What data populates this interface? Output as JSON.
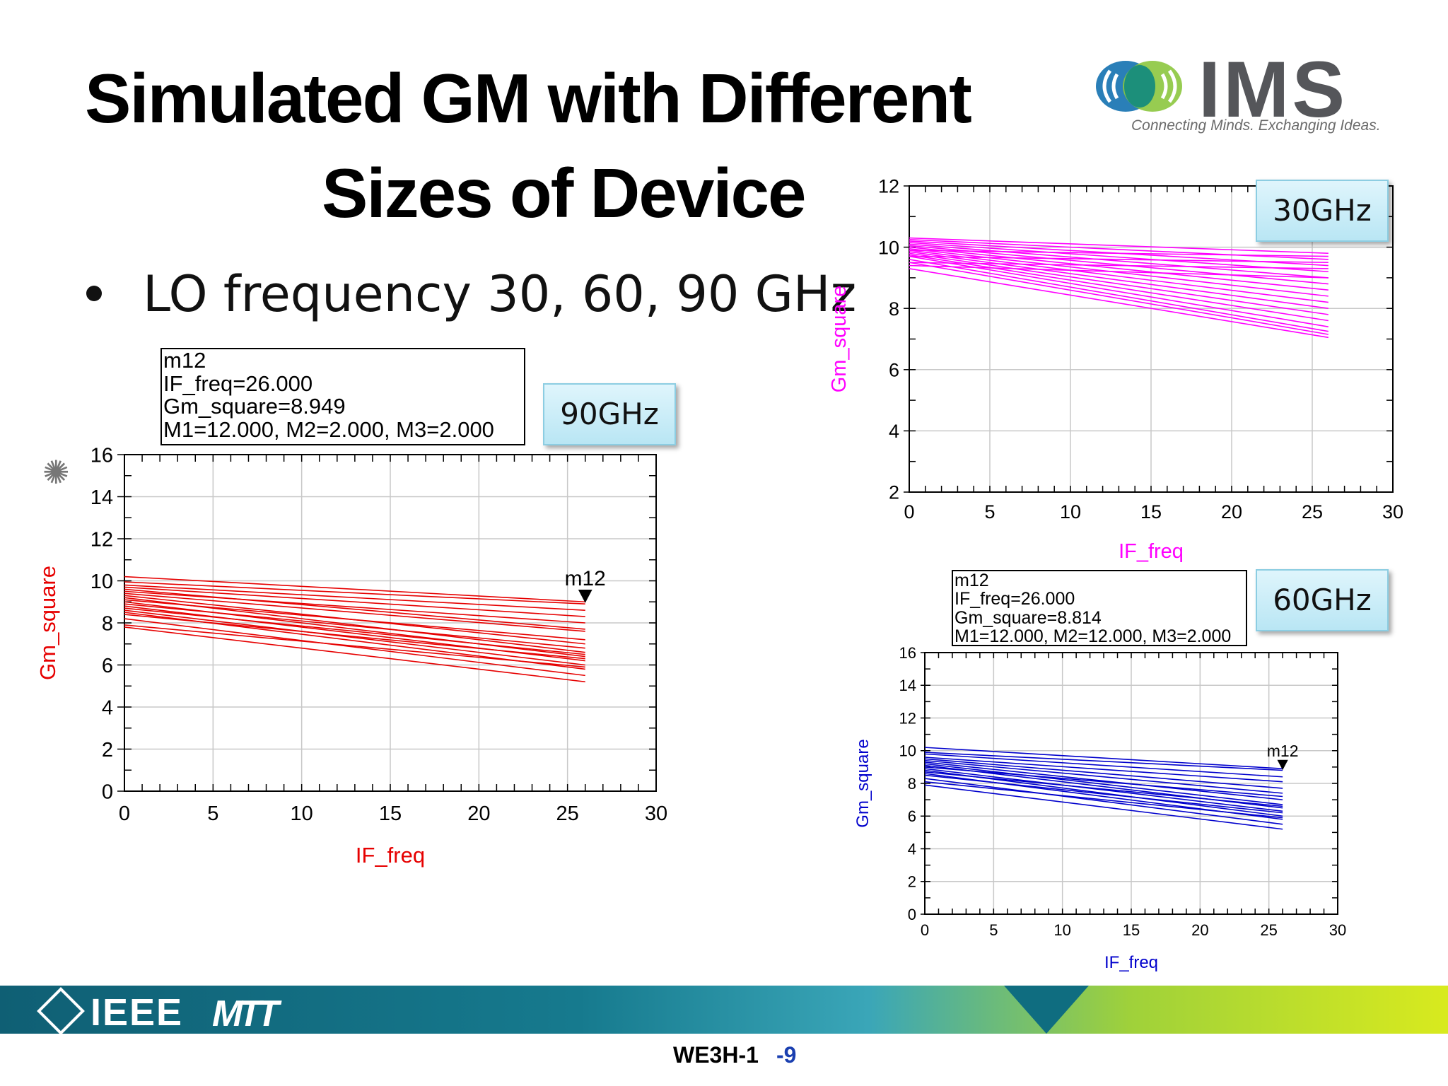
{
  "slide": {
    "title_line1": "Simulated GM with Different",
    "title_line2": "Sizes of Device",
    "bullet": "LO frequency 30, 60, 90 GHz",
    "logo_text": "IMS",
    "logo_tagline": "Connecting Minds. Exchanging Ideas.",
    "footer_left": "IEEE",
    "footer_mtt": "MTT",
    "slide_id": "WE3H-1",
    "page_number": "-9",
    "colors": {
      "chart_90": "#e60000",
      "chart_30": "#ff00ff",
      "chart_60": "#0000cc",
      "footer_start": "#0f5f74",
      "footer_end": "#d8ea1e"
    },
    "icons": [
      "ieee-diamond-icon",
      "mtt-logo-icon",
      "ims-speech-bubbles-icon",
      "agilent-spark-icon"
    ]
  },
  "chart_data": [
    {
      "id": "chart90",
      "type": "line",
      "badge": "90GHz",
      "xlabel": "IF_freq",
      "ylabel": "Gm_square",
      "xlim": [
        0,
        30
      ],
      "ylim": [
        0,
        16
      ],
      "xticks": [
        "0",
        "5",
        "10",
        "15",
        "20",
        "25",
        "30"
      ],
      "yticks": [
        "0",
        "2",
        "4",
        "6",
        "8",
        "10",
        "12",
        "14",
        "16"
      ],
      "grid": true,
      "color": "#e60000",
      "x": [
        0,
        26
      ],
      "series": [
        {
          "values": [
            10.2,
            9.0
          ]
        },
        {
          "values": [
            9.95,
            8.9
          ]
        },
        {
          "values": [
            9.8,
            8.6
          ]
        },
        {
          "values": [
            9.7,
            8.3
          ]
        },
        {
          "values": [
            9.6,
            7.7
          ]
        },
        {
          "values": [
            9.5,
            8.0
          ]
        },
        {
          "values": [
            9.4,
            7.6
          ]
        },
        {
          "values": [
            9.3,
            7.0
          ]
        },
        {
          "values": [
            9.2,
            6.6
          ]
        },
        {
          "values": [
            9.1,
            7.2
          ]
        },
        {
          "values": [
            9.0,
            6.4
          ]
        },
        {
          "values": [
            8.9,
            6.8
          ]
        },
        {
          "values": [
            8.8,
            6.2
          ]
        },
        {
          "values": [
            8.7,
            6.5
          ]
        },
        {
          "values": [
            8.6,
            6.0
          ]
        },
        {
          "values": [
            8.5,
            5.8
          ]
        },
        {
          "values": [
            8.4,
            6.3
          ]
        },
        {
          "values": [
            8.2,
            5.5
          ]
        },
        {
          "values": [
            7.9,
            5.9
          ]
        },
        {
          "values": [
            7.8,
            5.2
          ]
        }
      ],
      "marker": {
        "name": "m12",
        "x": 26,
        "y": 8.949,
        "lines": [
          "m12",
          "IF_freq=26.000",
          "Gm_square=8.949",
          "M1=12.000, M2=2.000, M3=2.000"
        ]
      }
    },
    {
      "id": "chart30",
      "type": "line",
      "badge": "30GHz",
      "xlabel": "IF_freq",
      "ylabel": "Gm_square",
      "xlim": [
        0,
        30
      ],
      "ylim": [
        2,
        12
      ],
      "xticks": [
        "0",
        "5",
        "10",
        "15",
        "20",
        "25",
        "30"
      ],
      "yticks": [
        "2",
        "4",
        "6",
        "8",
        "10",
        "12"
      ],
      "grid": true,
      "color": "#ff00ff",
      "x": [
        0,
        26
      ],
      "series": [
        {
          "values": [
            10.3,
            9.8
          ]
        },
        {
          "values": [
            10.25,
            9.6
          ]
        },
        {
          "values": [
            10.2,
            9.4
          ]
        },
        {
          "values": [
            10.15,
            9.2
          ]
        },
        {
          "values": [
            10.1,
            9.0
          ]
        },
        {
          "values": [
            10.05,
            8.8
          ]
        },
        {
          "values": [
            10.0,
            8.6
          ]
        },
        {
          "values": [
            9.95,
            8.4
          ]
        },
        {
          "values": [
            9.9,
            8.2
          ]
        },
        {
          "values": [
            9.85,
            8.0
          ]
        },
        {
          "values": [
            9.8,
            7.8
          ]
        },
        {
          "values": [
            9.75,
            7.6
          ]
        },
        {
          "values": [
            9.7,
            7.4
          ]
        },
        {
          "values": [
            9.6,
            7.25
          ]
        },
        {
          "values": [
            9.5,
            7.15
          ]
        },
        {
          "values": [
            9.3,
            7.05
          ]
        },
        {
          "values": [
            9.9,
            9.7
          ]
        },
        {
          "values": [
            9.7,
            9.5
          ]
        },
        {
          "values": [
            9.5,
            9.3
          ]
        },
        {
          "values": [
            9.4,
            9.0
          ]
        }
      ]
    },
    {
      "id": "chart60",
      "type": "line",
      "badge": "60GHz",
      "xlabel": "IF_freq",
      "ylabel": "Gm_square",
      "xlim": [
        0,
        30
      ],
      "ylim": [
        0,
        16
      ],
      "xticks": [
        "0",
        "5",
        "10",
        "15",
        "20",
        "25",
        "30"
      ],
      "yticks": [
        "0",
        "2",
        "4",
        "6",
        "8",
        "10",
        "12",
        "14",
        "16"
      ],
      "grid": true,
      "color": "#0000cc",
      "x": [
        0,
        26
      ],
      "series": [
        {
          "values": [
            10.2,
            8.9
          ]
        },
        {
          "values": [
            9.9,
            8.8
          ]
        },
        {
          "values": [
            9.8,
            8.4
          ]
        },
        {
          "values": [
            9.6,
            8.1
          ]
        },
        {
          "values": [
            9.5,
            7.7
          ]
        },
        {
          "values": [
            9.4,
            7.4
          ]
        },
        {
          "values": [
            9.3,
            7.0
          ]
        },
        {
          "values": [
            9.2,
            6.7
          ]
        },
        {
          "values": [
            9.1,
            6.5
          ]
        },
        {
          "values": [
            9.0,
            7.2
          ]
        },
        {
          "values": [
            8.9,
            6.3
          ]
        },
        {
          "values": [
            8.8,
            6.0
          ]
        },
        {
          "values": [
            8.7,
            6.6
          ]
        },
        {
          "values": [
            8.6,
            5.8
          ]
        },
        {
          "values": [
            8.5,
            6.2
          ]
        },
        {
          "values": [
            8.3,
            5.5
          ]
        },
        {
          "values": [
            8.1,
            5.9
          ]
        },
        {
          "values": [
            7.9,
            5.2
          ]
        }
      ],
      "marker": {
        "name": "m12",
        "x": 26,
        "y": 8.814,
        "lines": [
          "m12",
          "IF_freq=26.000",
          "Gm_square=8.814",
          "M1=12.000, M2=12.000, M3=2.000"
        ]
      }
    }
  ]
}
